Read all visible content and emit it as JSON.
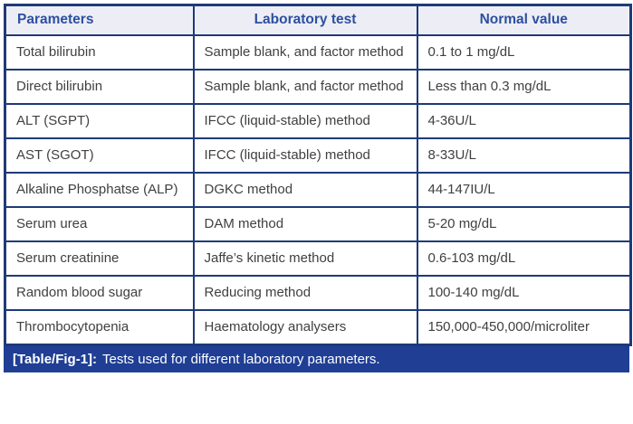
{
  "colors": {
    "border_navy": "#1e3a78",
    "header_bg": "#edeef5",
    "header_text": "#2d4fa1",
    "body_text": "#404042",
    "caption_bg": "#1f3e94",
    "caption_text": "#ffffff"
  },
  "table": {
    "headers": [
      "Parameters",
      "Laboratory test",
      "Normal value"
    ],
    "rows": [
      [
        "Total bilirubin",
        "Sample blank, and factor method",
        "0.1 to 1 mg/dL"
      ],
      [
        "Direct bilirubin",
        "Sample blank, and factor method",
        "Less than 0.3 mg/dL"
      ],
      [
        "ALT (SGPT)",
        "IFCC (liquid-stable) method",
        "4-36U/L"
      ],
      [
        "AST (SGOT)",
        "IFCC (liquid-stable) method",
        "8-33U/L"
      ],
      [
        "Alkaline Phosphatse (ALP)",
        "DGKC method",
        "44-147IU/L"
      ],
      [
        "Serum urea",
        "DAM method",
        "5-20 mg/dL"
      ],
      [
        "Serum creatinine",
        "Jaffe’s kinetic method",
        "0.6-103 mg/dL"
      ],
      [
        "Random blood sugar",
        "Reducing method",
        "100-140 mg/dL"
      ],
      [
        "Thrombocytopenia",
        "Haematology analysers",
        "150,000-450,000/microliter"
      ]
    ]
  },
  "caption": {
    "label": "[Table/Fig-1]:",
    "text": "Tests used for different laboratory parameters."
  }
}
